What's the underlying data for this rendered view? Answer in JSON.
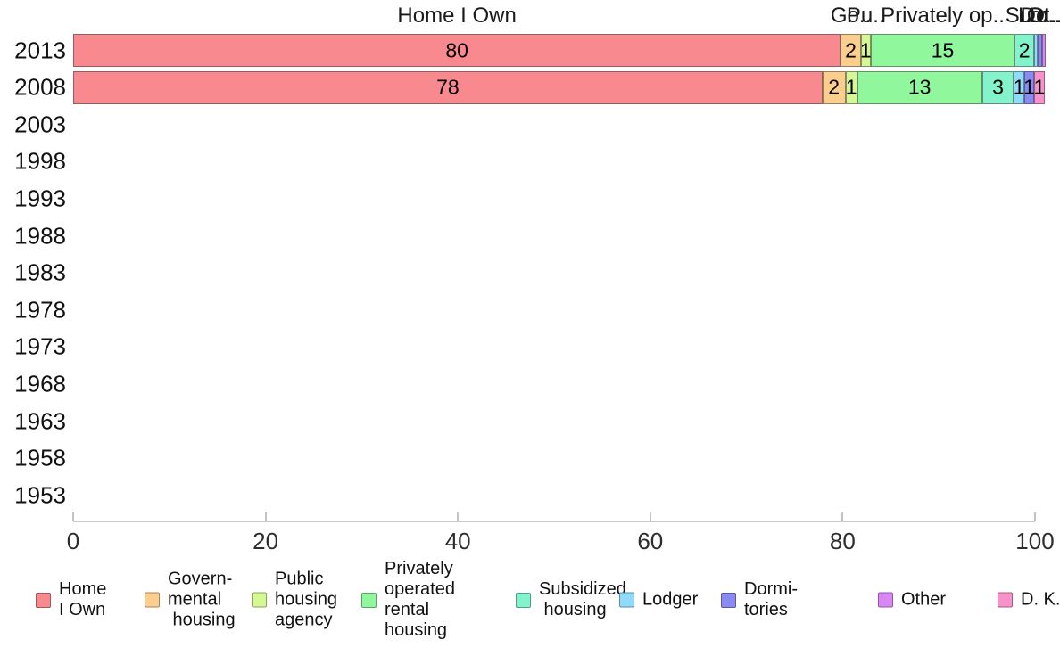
{
  "chart_data": {
    "type": "bar",
    "orientation": "horizontal",
    "stacked": true,
    "title": "",
    "xlabel": "",
    "ylabel": "",
    "xlim": [
      0,
      100
    ],
    "xticks": [
      "0",
      "20",
      "40",
      "60",
      "80",
      "100"
    ],
    "categories": [
      "2013",
      "2008",
      "2003",
      "1998",
      "1993",
      "1988",
      "1983",
      "1978",
      "1973",
      "1968",
      "1963",
      "1958",
      "1953"
    ],
    "rows_with_data": [
      "2013",
      "2008"
    ],
    "grid": false,
    "legend_position": "bottom",
    "series": [
      {
        "name": "Home I Own",
        "header": "Home I Own",
        "legend_label": "Home\nI Own",
        "color": "#F8898E",
        "values": {
          "2013": 79.8,
          "2008": 77.9
        },
        "display": {
          "2013": "80",
          "2008": "78"
        }
      },
      {
        "name": "Governmental housing",
        "header": "Go..",
        "legend_label": "Govern-\nmental\n housing",
        "color": "#FBCE8D",
        "values": {
          "2013": 2.1,
          "2008": 2.4
        },
        "display": {
          "2013": "2",
          "2008": "2"
        }
      },
      {
        "name": "Public housing agency",
        "header": "Pu..",
        "legend_label": "Public\nhousing\nagency",
        "color": "#D5F794",
        "values": {
          "2013": 1.0,
          "2008": 1.2
        },
        "display": {
          "2013": "1",
          "2008": "1"
        }
      },
      {
        "name": "Privately operated rental housing",
        "header": "Privately op..",
        "legend_label": "Privately\noperated\nrental\nhousing",
        "color": "#90F79D",
        "values": {
          "2013": 15.0,
          "2008": 13.0
        },
        "display": {
          "2013": "15",
          "2008": "13"
        }
      },
      {
        "name": "Subsidized housing",
        "header": "Su..",
        "legend_label": "Subsidized\n housing",
        "color": "#83F3CC",
        "values": {
          "2013": 2.0,
          "2008": 3.3
        },
        "display": {
          "2013": "2",
          "2008": "3"
        }
      },
      {
        "name": "Lodger",
        "header": "Lo..",
        "legend_label": "Lodger",
        "color": "#91DBFA",
        "values": {
          "2013": 0.4,
          "2008": 1.1
        },
        "display": {
          "2013": "",
          "2008": "1"
        }
      },
      {
        "name": "Dormitories",
        "header": "Do..",
        "legend_label": "Dormi-\ntories",
        "color": "#8A8AF3",
        "values": {
          "2013": 0.45,
          "2008": 1.0
        },
        "display": {
          "2013": "",
          "2008": "1"
        }
      },
      {
        "name": "Other",
        "header": "Ot..",
        "legend_label": "Other",
        "color": "#D987F8",
        "values": {
          "2013": 0.4,
          "2008": 0
        },
        "display": {
          "2013": "",
          "2008": ""
        }
      },
      {
        "name": "D. K.",
        "header": "D...",
        "legend_label": "D. K.",
        "color": "#F992CA",
        "values": {
          "2013": 0,
          "2008": 1.1
        },
        "display": {
          "2013": "",
          "2008": "1"
        }
      }
    ]
  }
}
